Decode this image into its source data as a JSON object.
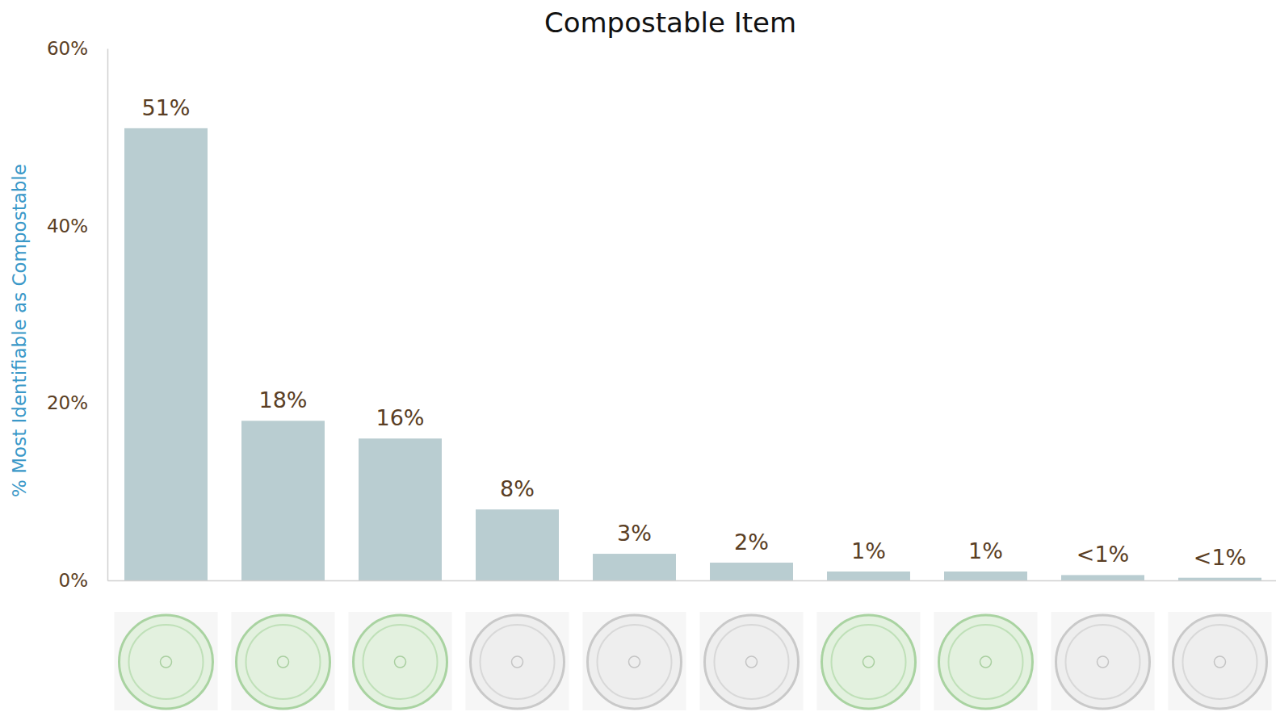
{
  "chart_data": {
    "type": "bar",
    "title": "Compostable Item",
    "y_label": "% Most Identifiable as Compostable",
    "categories": [
      null,
      null,
      null,
      null,
      null,
      null,
      null,
      null,
      null,
      null
    ],
    "values": [
      51,
      18,
      16,
      8,
      3,
      2,
      1,
      1,
      0.6,
      0.3
    ],
    "value_labels": [
      "51%",
      "18%",
      "16%",
      "8%",
      "3%",
      "2%",
      "1%",
      "1%",
      "<1%",
      "<1%"
    ],
    "data_labels": true,
    "color": "#b9cdd1",
    "ylim": [
      0,
      60
    ],
    "yticks": [
      {
        "value": 0,
        "label": "0%"
      },
      {
        "value": 20,
        "label": "20%"
      },
      {
        "value": 40,
        "label": "40%"
      },
      {
        "value": 60,
        "label": "60%"
      }
    ],
    "grid": false
  }
}
